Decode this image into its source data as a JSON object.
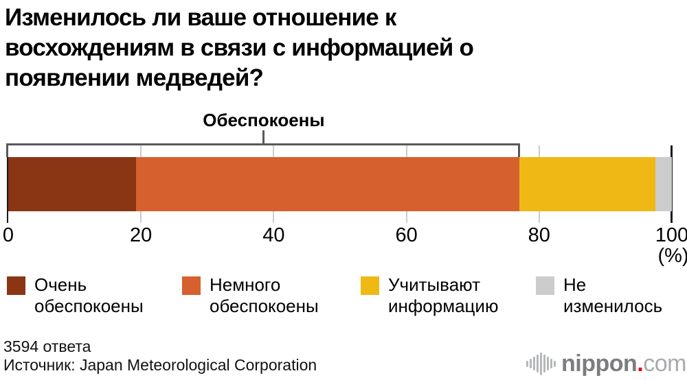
{
  "title": {
    "lines": [
      "Изменилось ли ваше отношение к",
      "восхождениям в связи с информацией о",
      "появлении медведей?"
    ]
  },
  "chart_data": {
    "type": "bar",
    "orientation": "horizontal-stacked",
    "xlim": [
      0,
      100
    ],
    "ticks": [
      0,
      20,
      40,
      60,
      80,
      100
    ],
    "unit_label": "(%)",
    "grid": true,
    "series": [
      {
        "name": "Очень обеспокоены",
        "lines": [
          "Очень",
          "обеспокоены"
        ],
        "value": 19.3,
        "color": "#8a3513"
      },
      {
        "name": "Немного обеспокоены",
        "lines": [
          "Немного",
          "обеспокоены"
        ],
        "value": 57.7,
        "color": "#d6612f"
      },
      {
        "name": "Учитывают информацию",
        "lines": [
          "Учитывают",
          "информацию"
        ],
        "value": 20.5,
        "color": "#f0b814"
      },
      {
        "name": "Не изменилось",
        "lines": [
          "Не",
          "изменилось"
        ],
        "value": 2.5,
        "color": "#cccccc"
      }
    ],
    "bracket": {
      "label": "Обеспокоены",
      "from": 0,
      "to": 77
    },
    "colors": {
      "axis_line": "#1a1a1a",
      "grid_line": "#cccccc",
      "bracket_line": "#58595b"
    }
  },
  "footer": {
    "responses": "3594 ответа",
    "source": "Источник: Japan Meteorological Corporation"
  },
  "logo": {
    "name": "nippon",
    "dot": ".",
    "tld": "com"
  }
}
